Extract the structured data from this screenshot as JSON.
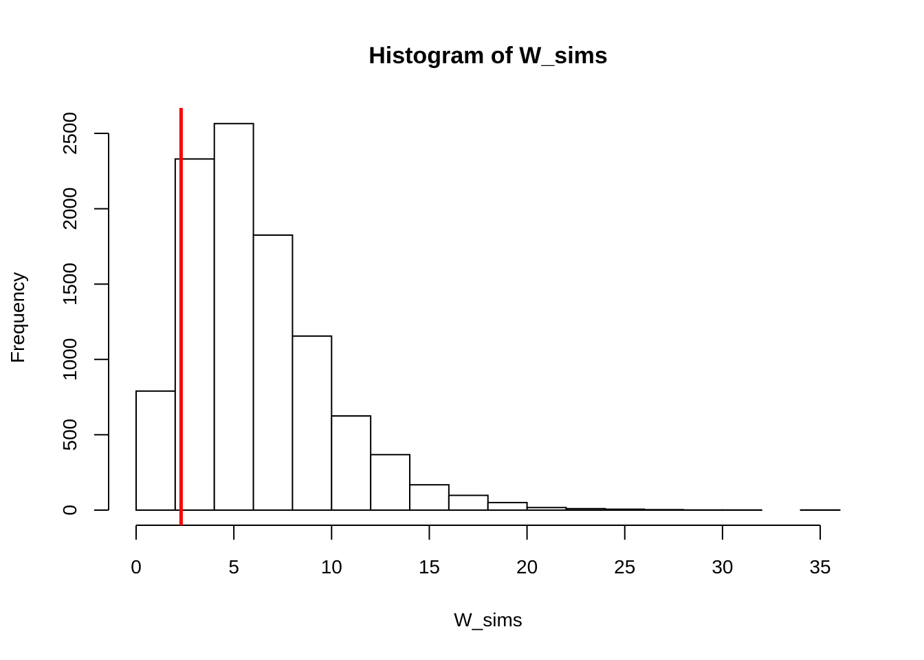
{
  "chart_data": {
    "type": "histogram",
    "title": "Histogram of W_sims",
    "xlabel": "W_sims",
    "ylabel": "Frequency",
    "bin_width": 2,
    "bins": [
      {
        "x0": 0,
        "x1": 2,
        "count": 790
      },
      {
        "x0": 2,
        "x1": 4,
        "count": 2330
      },
      {
        "x0": 4,
        "x1": 6,
        "count": 2565
      },
      {
        "x0": 6,
        "x1": 8,
        "count": 1825
      },
      {
        "x0": 8,
        "x1": 10,
        "count": 1155
      },
      {
        "x0": 10,
        "x1": 12,
        "count": 625
      },
      {
        "x0": 12,
        "x1": 14,
        "count": 368
      },
      {
        "x0": 14,
        "x1": 16,
        "count": 168
      },
      {
        "x0": 16,
        "x1": 18,
        "count": 98
      },
      {
        "x0": 18,
        "x1": 20,
        "count": 50
      },
      {
        "x0": 20,
        "x1": 22,
        "count": 17
      },
      {
        "x0": 22,
        "x1": 24,
        "count": 10
      },
      {
        "x0": 24,
        "x1": 26,
        "count": 6
      },
      {
        "x0": 26,
        "x1": 28,
        "count": 3
      },
      {
        "x0": 28,
        "x1": 30,
        "count": 1
      },
      {
        "x0": 30,
        "x1": 32,
        "count": 1
      },
      {
        "x0": 32,
        "x1": 34,
        "count": 0
      },
      {
        "x0": 34,
        "x1": 36,
        "count": 1
      }
    ],
    "x_ticks": [
      "0",
      "5",
      "10",
      "15",
      "20",
      "25",
      "30",
      "35"
    ],
    "y_ticks": [
      "0",
      "500",
      "1000",
      "1500",
      "2000",
      "2500"
    ],
    "xlim": [
      0,
      35
    ],
    "ylim": [
      0,
      2500
    ],
    "reference_line": {
      "x": 2.3,
      "color": "#ff0000"
    },
    "grid": false,
    "legend": "none",
    "bar_fill": "#ffffff",
    "bar_stroke": "#000000"
  }
}
